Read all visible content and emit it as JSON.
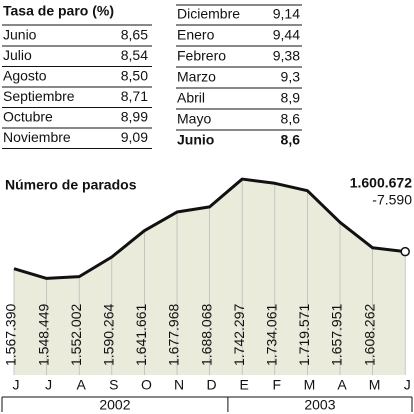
{
  "table": {
    "title": "Tasa de paro (%)",
    "left_rows": [
      [
        "Junio",
        "8,65"
      ],
      [
        "Julio",
        "8,54"
      ],
      [
        "Agosto",
        "8,50"
      ],
      [
        "Septiembre",
        "8,71"
      ],
      [
        "Octubre",
        "8,99"
      ],
      [
        "Noviembre",
        "9,09"
      ]
    ],
    "right_rows": [
      [
        "Diciembre",
        "9,14"
      ],
      [
        "Enero",
        "9,44"
      ],
      [
        "Febrero",
        "9,38"
      ],
      [
        "Marzo",
        "9,3"
      ],
      [
        "Abril",
        "8,9"
      ],
      [
        "Mayo",
        "8,6"
      ],
      [
        "Junio",
        "8,6"
      ]
    ]
  },
  "chart_data": {
    "type": "area",
    "title": "Número de parados",
    "categories": [
      "J",
      "J",
      "A",
      "S",
      "O",
      "N",
      "D",
      "E",
      "F",
      "M",
      "A",
      "M",
      "J"
    ],
    "values": [
      1567390,
      1548449,
      1552002,
      1590264,
      1641661,
      1677968,
      1688068,
      1742297,
      1734061,
      1719571,
      1657951,
      1608262,
      1600672
    ],
    "value_labels": [
      "1.567.390",
      "1.548.449",
      "1.552.002",
      "1.590.264",
      "1.641.661",
      "1.677.968",
      "1.688.068",
      "1.742.297",
      "1.734.061",
      "1.719.571",
      "1.657.951",
      "1.608.262",
      "1.600.672"
    ],
    "annotation": "-7.590",
    "x_groups": [
      {
        "label": "2002",
        "count": 7
      },
      {
        "label": "2003",
        "count": 6
      }
    ],
    "ylim": [
      1360000,
      1760000
    ],
    "color": "#111111",
    "fill": "#ebebdc"
  }
}
